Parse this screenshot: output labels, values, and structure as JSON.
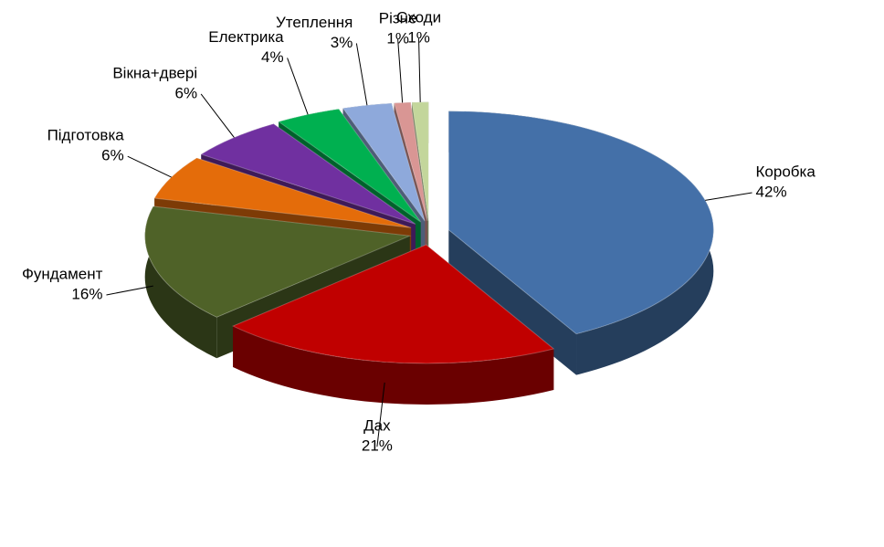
{
  "chart_data": {
    "type": "pie",
    "categories": [
      "Коробка",
      "Дах",
      "Фундамент",
      "Підготовка",
      "Вікна+двері",
      "Електрика",
      "Утеплення",
      "Різне",
      "Сходи"
    ],
    "values": [
      42,
      21,
      16,
      6,
      6,
      4,
      3,
      1,
      1
    ],
    "value_labels": [
      "42%",
      "21%",
      "16%",
      "6%",
      "6%",
      "4%",
      "3%",
      "1%",
      "1%"
    ],
    "colors": [
      "#4470a8",
      "#c00000",
      "#4f6228",
      "#e46c0a",
      "#7030a0",
      "#00b050",
      "#8ea9db",
      "#d99694",
      "#c3d69b"
    ]
  }
}
